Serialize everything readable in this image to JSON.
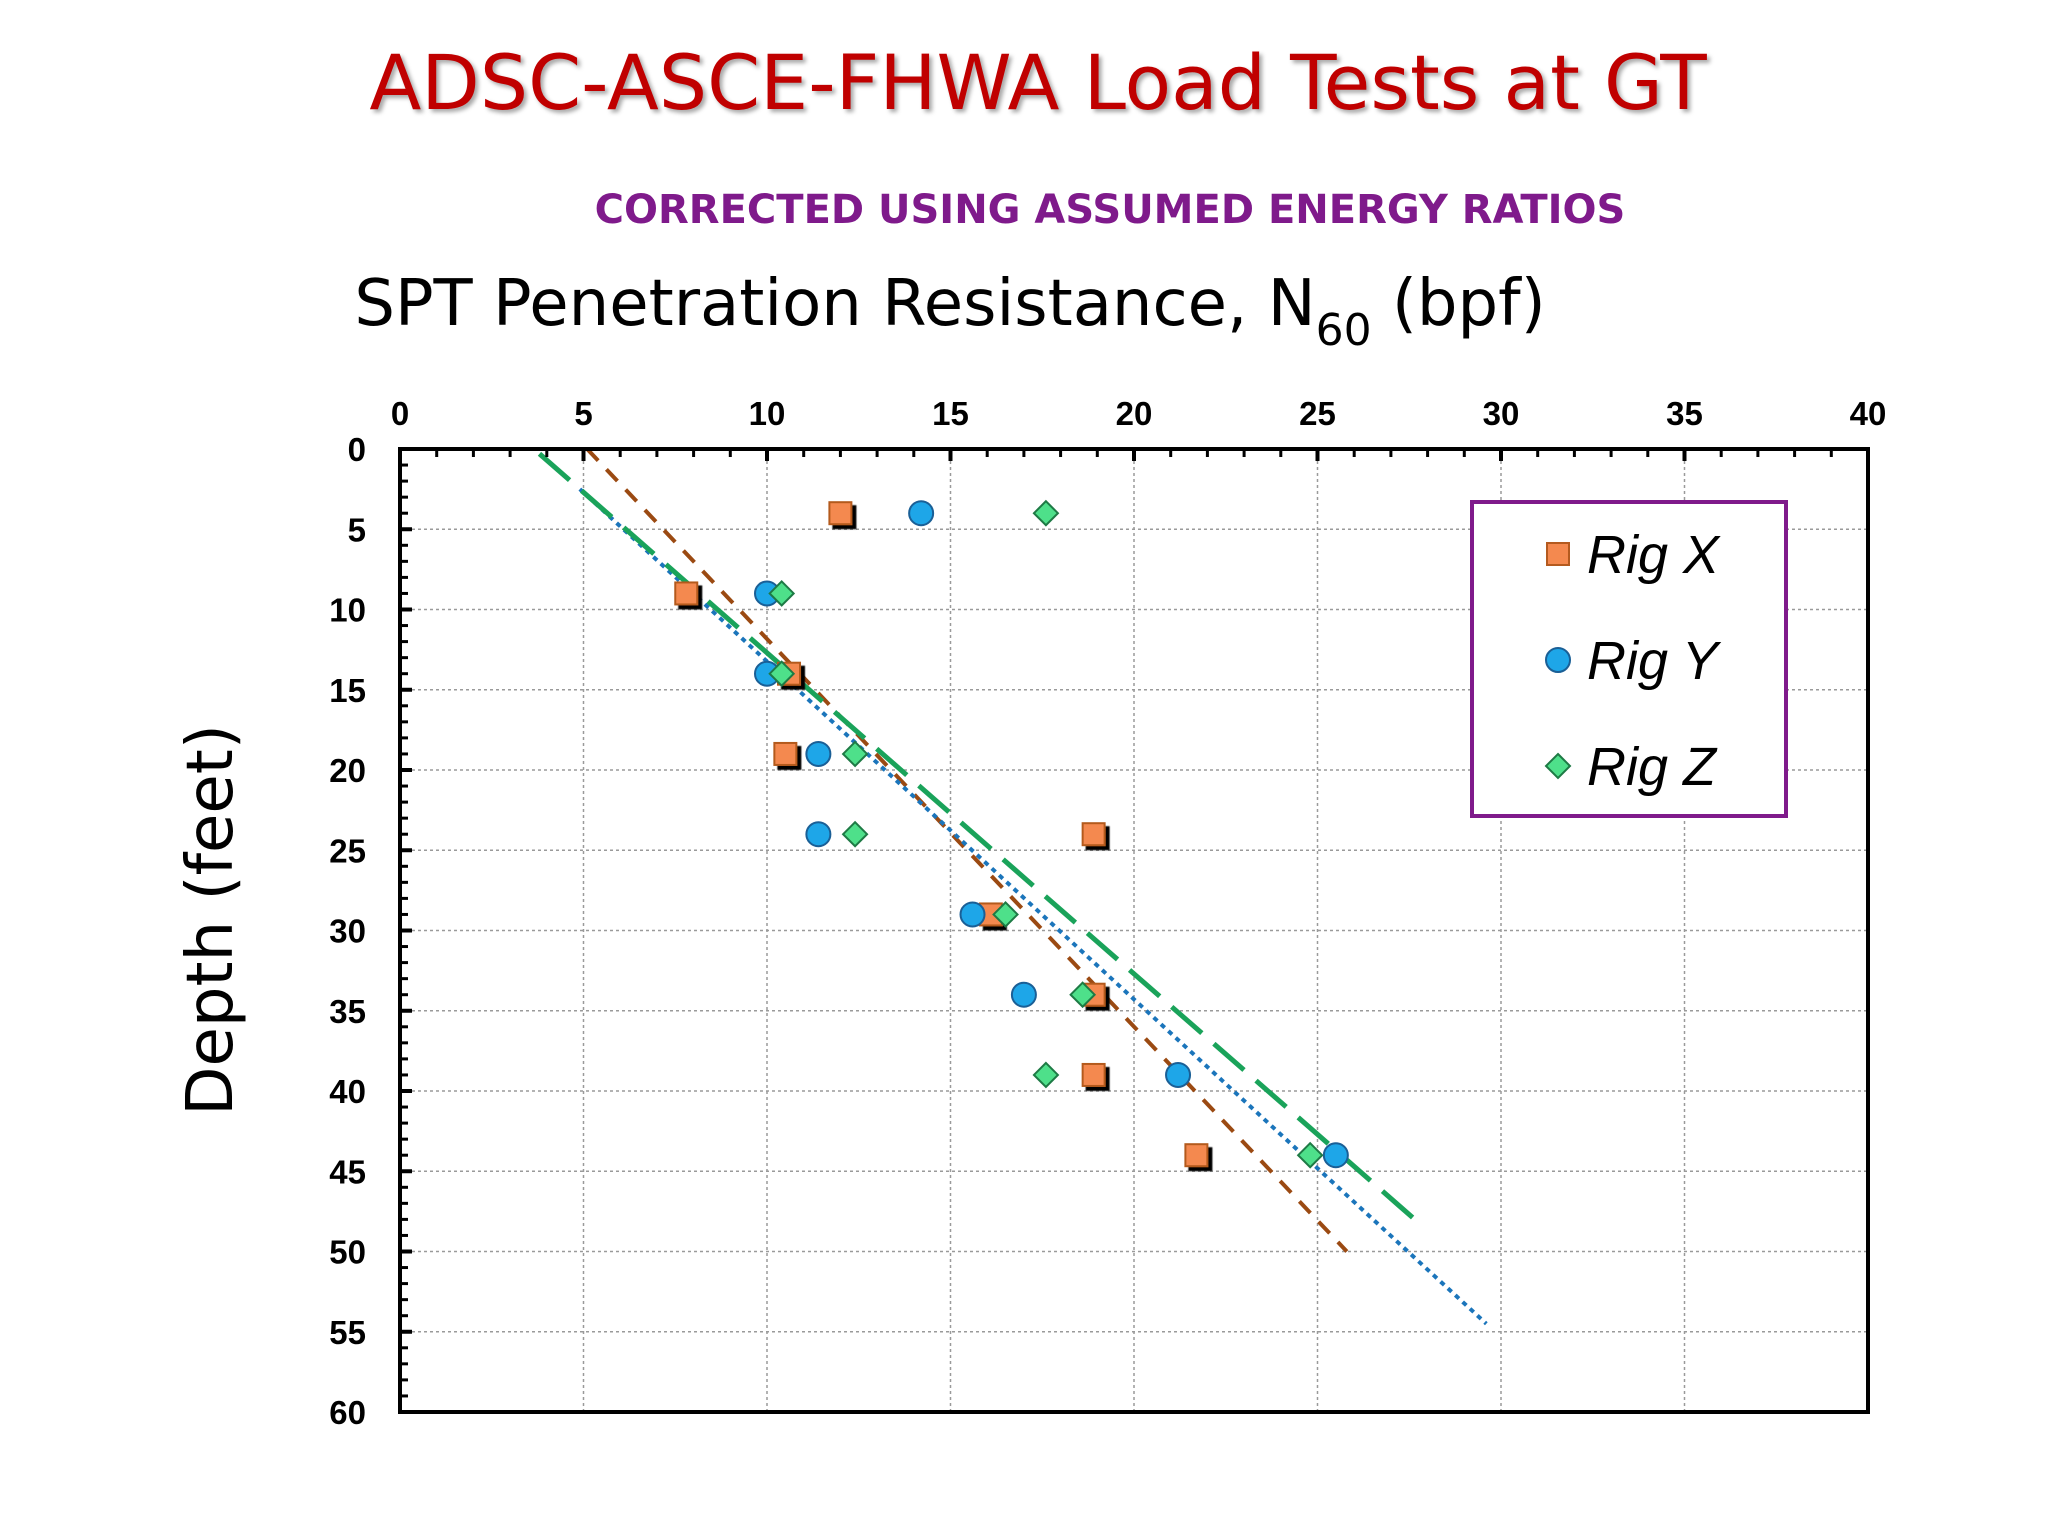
{
  "slide": {
    "title": "ADSC-ASCE-FHWA Load Tests at GT"
  },
  "chart_data": {
    "type": "scatter",
    "subtitle": "CORRECTED USING ASSUMED  ENERGY RATIOS",
    "xlabel": "SPT Penetration Resistance, N60 (bpf)",
    "xlabel_main": "SPT Penetration Resistance, N",
    "xlabel_sub": "60",
    "xlabel_suffix": " (bpf)",
    "ylabel": "Depth (feet)",
    "x_axis_position": "top",
    "y_axis_inverted": true,
    "xlim": [
      0,
      40
    ],
    "ylim": [
      0,
      60
    ],
    "xticks": [
      0,
      5,
      10,
      15,
      20,
      25,
      30,
      35,
      40
    ],
    "yticks": [
      0,
      5,
      10,
      15,
      20,
      25,
      30,
      35,
      40,
      45,
      50,
      55,
      60
    ],
    "grid": true,
    "legend": {
      "position": "top-right",
      "border_color": "#7f1a8b"
    },
    "series": [
      {
        "name": "Rig X",
        "marker": "square",
        "color": "#f4894f",
        "points": [
          {
            "x": 12,
            "y": 4
          },
          {
            "x": 7.8,
            "y": 9
          },
          {
            "x": 10.6,
            "y": 14
          },
          {
            "x": 10.5,
            "y": 19
          },
          {
            "x": 18.9,
            "y": 24
          },
          {
            "x": 16.1,
            "y": 29
          },
          {
            "x": 18.9,
            "y": 34
          },
          {
            "x": 18.9,
            "y": 39
          },
          {
            "x": 21.7,
            "y": 44
          }
        ]
      },
      {
        "name": "Rig Y",
        "marker": "circle",
        "color": "#1ea6e8",
        "points": [
          {
            "x": 14.2,
            "y": 4
          },
          {
            "x": 10,
            "y": 9
          },
          {
            "x": 10,
            "y": 14
          },
          {
            "x": 11.4,
            "y": 19
          },
          {
            "x": 11.4,
            "y": 24
          },
          {
            "x": 15.6,
            "y": 29
          },
          {
            "x": 17,
            "y": 34
          },
          {
            "x": 21.2,
            "y": 39
          },
          {
            "x": 25.5,
            "y": 44
          }
        ]
      },
      {
        "name": "Rig Z",
        "marker": "diamond",
        "color": "#4ee08a",
        "points": [
          {
            "x": 17.6,
            "y": 4
          },
          {
            "x": 10.4,
            "y": 9
          },
          {
            "x": 10.4,
            "y": 14
          },
          {
            "x": 12.4,
            "y": 19
          },
          {
            "x": 12.4,
            "y": 24
          },
          {
            "x": 16.5,
            "y": 29
          },
          {
            "x": 18.6,
            "y": 34
          },
          {
            "x": 17.6,
            "y": 39
          },
          {
            "x": 24.8,
            "y": 44
          }
        ]
      }
    ],
    "trendlines": [
      {
        "series": "Rig X",
        "color": "#9b4a12",
        "dash": "medium",
        "from": {
          "x": 5.1,
          "y": 0
        },
        "to": {
          "x": 25.8,
          "y": 50
        }
      },
      {
        "series": "Rig Y",
        "color": "#1b75bb",
        "dash": "short",
        "from": {
          "x": 4.9,
          "y": 2.5
        },
        "to": {
          "x": 29.6,
          "y": 54.5
        }
      },
      {
        "series": "Rig Z",
        "color": "#1aa35a",
        "dash": "long",
        "from": {
          "x": 3.8,
          "y": 0.3
        },
        "to": {
          "x": 27.9,
          "y": 48.5
        }
      }
    ]
  }
}
